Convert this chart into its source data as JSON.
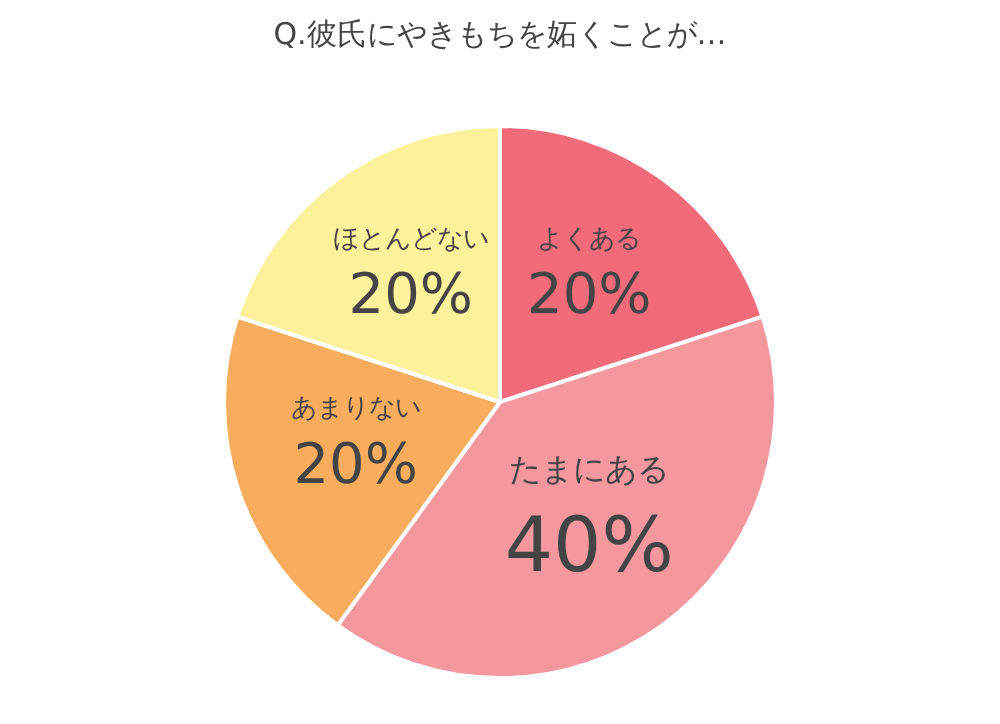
{
  "chart_data": {
    "type": "pie",
    "title": "Q.彼氏にやきもちを妬くことが…",
    "categories": [
      "よくある",
      "たまにある",
      "あまりない",
      "ほとんどない"
    ],
    "values": [
      20,
      40,
      20,
      20
    ],
    "value_labels": [
      "20%",
      "40%",
      "20%",
      "20%"
    ],
    "colors": [
      "#f16b7b",
      "#f4979f",
      "#f7ad5d",
      "#fdf19c"
    ],
    "legend": false
  }
}
